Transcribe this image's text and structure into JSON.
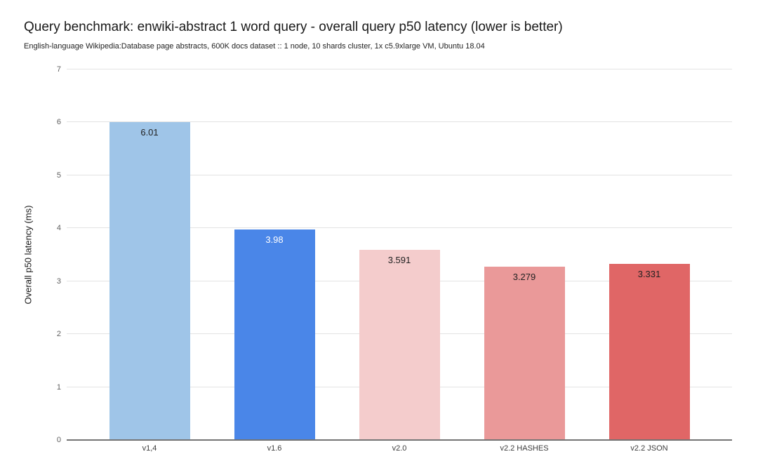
{
  "chart_data": {
    "type": "bar",
    "title": "Query benchmark: enwiki-abstract 1 word query - overall query p50 latency (lower is better)",
    "subtitle": "English-language Wikipedia:Database page abstracts, 600K docs dataset :: 1 node, 10 shards cluster, 1x c5.9xlarge VM, Ubuntu 18.04",
    "categories": [
      "v1,4",
      "v1.6",
      "v2.0",
      "v2.2 HASHES",
      "v2.2 JSON"
    ],
    "values": [
      6.01,
      3.98,
      3.591,
      3.279,
      3.331
    ],
    "value_labels": [
      "6.01",
      "3.98",
      "3.591",
      "3.279",
      "3.331"
    ],
    "bar_colors": [
      "#9fc5e8",
      "#4a86e8",
      "#f4cccc",
      "#ea9999",
      "#e06666"
    ],
    "value_label_colors": [
      "#212121",
      "#ffffff",
      "#212121",
      "#212121",
      "#212121"
    ],
    "xlabel": "",
    "ylabel": "Overall p50 latency (ms)",
    "ylim": [
      0,
      7
    ],
    "yticks": [
      0,
      1,
      2,
      3,
      4,
      5,
      6,
      7
    ],
    "grid": true,
    "legend": false,
    "colors": {
      "background": "#ffffff",
      "gridline": "#e3e3e3",
      "axis_line": "#747474"
    }
  }
}
